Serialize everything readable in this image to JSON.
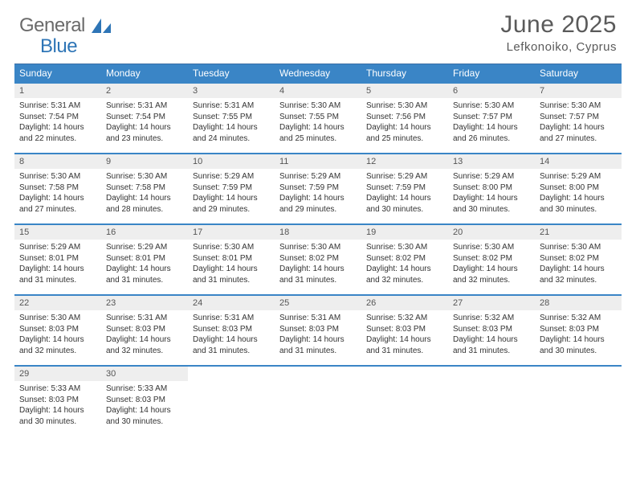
{
  "colors": {
    "header_bg": "#3a85c6",
    "header_text": "#ffffff",
    "row_border": "#3a85c6",
    "daynum_bg": "#eeeeee",
    "daynum_text": "#555555",
    "body_text": "#333333",
    "title_text": "#5a5a5a",
    "logo_grey": "#6a6a6a",
    "logo_blue": "#2e75b6"
  },
  "logo": {
    "word1": "General",
    "word2": "Blue"
  },
  "title": "June 2025",
  "location": "Lefkonoiko, Cyprus",
  "day_headers": [
    "Sunday",
    "Monday",
    "Tuesday",
    "Wednesday",
    "Thursday",
    "Friday",
    "Saturday"
  ],
  "labels": {
    "sunrise": "Sunrise:",
    "sunset": "Sunset:",
    "daylight": "Daylight:"
  },
  "days": [
    {
      "n": "1",
      "sunrise": "5:31 AM",
      "sunset": "7:54 PM",
      "dl1": "14 hours",
      "dl2": "and 22 minutes."
    },
    {
      "n": "2",
      "sunrise": "5:31 AM",
      "sunset": "7:54 PM",
      "dl1": "14 hours",
      "dl2": "and 23 minutes."
    },
    {
      "n": "3",
      "sunrise": "5:31 AM",
      "sunset": "7:55 PM",
      "dl1": "14 hours",
      "dl2": "and 24 minutes."
    },
    {
      "n": "4",
      "sunrise": "5:30 AM",
      "sunset": "7:55 PM",
      "dl1": "14 hours",
      "dl2": "and 25 minutes."
    },
    {
      "n": "5",
      "sunrise": "5:30 AM",
      "sunset": "7:56 PM",
      "dl1": "14 hours",
      "dl2": "and 25 minutes."
    },
    {
      "n": "6",
      "sunrise": "5:30 AM",
      "sunset": "7:57 PM",
      "dl1": "14 hours",
      "dl2": "and 26 minutes."
    },
    {
      "n": "7",
      "sunrise": "5:30 AM",
      "sunset": "7:57 PM",
      "dl1": "14 hours",
      "dl2": "and 27 minutes."
    },
    {
      "n": "8",
      "sunrise": "5:30 AM",
      "sunset": "7:58 PM",
      "dl1": "14 hours",
      "dl2": "and 27 minutes."
    },
    {
      "n": "9",
      "sunrise": "5:30 AM",
      "sunset": "7:58 PM",
      "dl1": "14 hours",
      "dl2": "and 28 minutes."
    },
    {
      "n": "10",
      "sunrise": "5:29 AM",
      "sunset": "7:59 PM",
      "dl1": "14 hours",
      "dl2": "and 29 minutes."
    },
    {
      "n": "11",
      "sunrise": "5:29 AM",
      "sunset": "7:59 PM",
      "dl1": "14 hours",
      "dl2": "and 29 minutes."
    },
    {
      "n": "12",
      "sunrise": "5:29 AM",
      "sunset": "7:59 PM",
      "dl1": "14 hours",
      "dl2": "and 30 minutes."
    },
    {
      "n": "13",
      "sunrise": "5:29 AM",
      "sunset": "8:00 PM",
      "dl1": "14 hours",
      "dl2": "and 30 minutes."
    },
    {
      "n": "14",
      "sunrise": "5:29 AM",
      "sunset": "8:00 PM",
      "dl1": "14 hours",
      "dl2": "and 30 minutes."
    },
    {
      "n": "15",
      "sunrise": "5:29 AM",
      "sunset": "8:01 PM",
      "dl1": "14 hours",
      "dl2": "and 31 minutes."
    },
    {
      "n": "16",
      "sunrise": "5:29 AM",
      "sunset": "8:01 PM",
      "dl1": "14 hours",
      "dl2": "and 31 minutes."
    },
    {
      "n": "17",
      "sunrise": "5:30 AM",
      "sunset": "8:01 PM",
      "dl1": "14 hours",
      "dl2": "and 31 minutes."
    },
    {
      "n": "18",
      "sunrise": "5:30 AM",
      "sunset": "8:02 PM",
      "dl1": "14 hours",
      "dl2": "and 31 minutes."
    },
    {
      "n": "19",
      "sunrise": "5:30 AM",
      "sunset": "8:02 PM",
      "dl1": "14 hours",
      "dl2": "and 32 minutes."
    },
    {
      "n": "20",
      "sunrise": "5:30 AM",
      "sunset": "8:02 PM",
      "dl1": "14 hours",
      "dl2": "and 32 minutes."
    },
    {
      "n": "21",
      "sunrise": "5:30 AM",
      "sunset": "8:02 PM",
      "dl1": "14 hours",
      "dl2": "and 32 minutes."
    },
    {
      "n": "22",
      "sunrise": "5:30 AM",
      "sunset": "8:03 PM",
      "dl1": "14 hours",
      "dl2": "and 32 minutes."
    },
    {
      "n": "23",
      "sunrise": "5:31 AM",
      "sunset": "8:03 PM",
      "dl1": "14 hours",
      "dl2": "and 32 minutes."
    },
    {
      "n": "24",
      "sunrise": "5:31 AM",
      "sunset": "8:03 PM",
      "dl1": "14 hours",
      "dl2": "and 31 minutes."
    },
    {
      "n": "25",
      "sunrise": "5:31 AM",
      "sunset": "8:03 PM",
      "dl1": "14 hours",
      "dl2": "and 31 minutes."
    },
    {
      "n": "26",
      "sunrise": "5:32 AM",
      "sunset": "8:03 PM",
      "dl1": "14 hours",
      "dl2": "and 31 minutes."
    },
    {
      "n": "27",
      "sunrise": "5:32 AM",
      "sunset": "8:03 PM",
      "dl1": "14 hours",
      "dl2": "and 31 minutes."
    },
    {
      "n": "28",
      "sunrise": "5:32 AM",
      "sunset": "8:03 PM",
      "dl1": "14 hours",
      "dl2": "and 30 minutes."
    },
    {
      "n": "29",
      "sunrise": "5:33 AM",
      "sunset": "8:03 PM",
      "dl1": "14 hours",
      "dl2": "and 30 minutes."
    },
    {
      "n": "30",
      "sunrise": "5:33 AM",
      "sunset": "8:03 PM",
      "dl1": "14 hours",
      "dl2": "and 30 minutes."
    }
  ]
}
